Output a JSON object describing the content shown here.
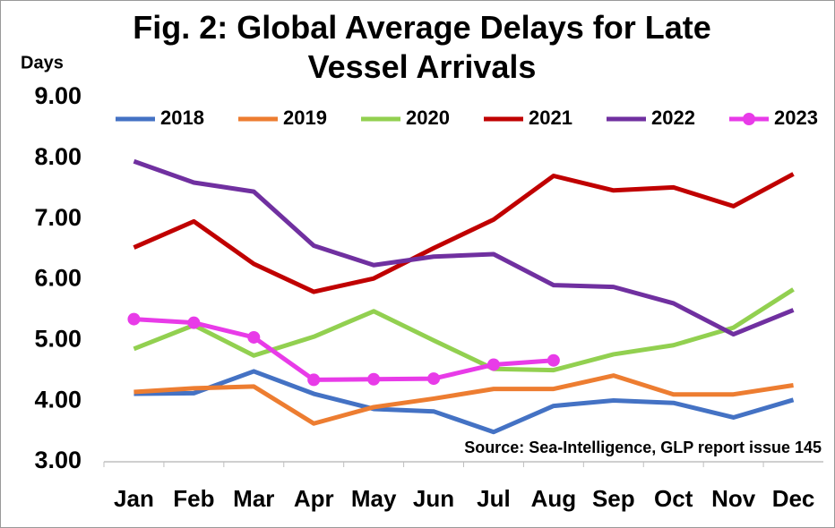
{
  "chart_data": {
    "type": "line",
    "title": "Fig. 2: Global Average Delays for Late Vessel Arrivals",
    "y_label": "Days",
    "annotation": "Source: Sea-Intelligence, GLP report issue 145",
    "categories": [
      "Jan",
      "Feb",
      "Mar",
      "Apr",
      "May",
      "Jun",
      "Jul",
      "Aug",
      "Sep",
      "Oct",
      "Nov",
      "Dec"
    ],
    "series": [
      {
        "name": "2018",
        "color": "#4472c4",
        "values": [
          4.12,
          4.13,
          4.49,
          4.12,
          3.87,
          3.83,
          3.49,
          3.92,
          4.01,
          3.97,
          3.73,
          4.02
        ]
      },
      {
        "name": "2019",
        "color": "#ed7d31",
        "values": [
          4.15,
          4.21,
          4.24,
          3.63,
          3.9,
          4.04,
          4.2,
          4.2,
          4.42,
          4.11,
          4.11,
          4.26
        ]
      },
      {
        "name": "2020",
        "color": "#92d050",
        "values": [
          4.86,
          5.25,
          4.75,
          5.06,
          5.48,
          5.0,
          4.53,
          4.51,
          4.77,
          4.92,
          5.21,
          5.84
        ]
      },
      {
        "name": "2021",
        "color": "#c00000",
        "values": [
          6.53,
          6.96,
          6.26,
          5.8,
          6.02,
          6.52,
          6.99,
          7.71,
          7.47,
          7.52,
          7.21,
          7.74
        ]
      },
      {
        "name": "2022",
        "color": "#7030a0",
        "values": [
          7.95,
          7.6,
          7.45,
          6.56,
          6.24,
          6.38,
          6.42,
          5.91,
          5.88,
          5.61,
          5.1,
          5.5
        ]
      },
      {
        "name": "2023",
        "color": "#e83be8",
        "marker": "circle",
        "values": [
          5.35,
          5.29,
          5.05,
          4.35,
          4.36,
          4.37,
          4.6,
          4.67,
          null,
          null,
          null,
          null
        ]
      }
    ],
    "ylim": [
      3,
      9
    ],
    "yticks": [
      {
        "value": 3,
        "label": "3.00"
      },
      {
        "value": 4,
        "label": "4.00"
      },
      {
        "value": 5,
        "label": "5.00"
      },
      {
        "value": 6,
        "label": "6.00"
      },
      {
        "value": 7,
        "label": "7.00"
      },
      {
        "value": 8,
        "label": "8.00"
      },
      {
        "value": 9,
        "label": "9.00"
      }
    ],
    "grid": false,
    "legend": "top"
  }
}
